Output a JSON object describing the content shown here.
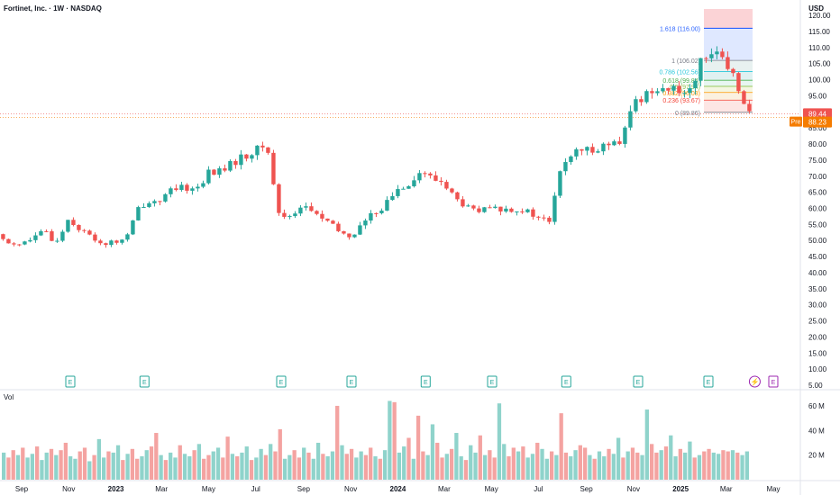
{
  "header": {
    "symbol": "Fortinet, Inc.",
    "interval": "1W",
    "exchange": "NASDAQ",
    "title": "Fortinet, Inc. · 1W · NASDAQ",
    "currency": "USD"
  },
  "colors": {
    "up": "#26a69a",
    "down": "#ef5350",
    "up_volume": "#8fd3cb",
    "down_volume": "#f4a3a1",
    "price_badge": "#ef5350",
    "pre_badge": "#f57c00",
    "earnings_green": "#26a69a",
    "earnings_purple": "#9c27b0",
    "fib_top_line": "#2962ff"
  },
  "chart_data": {
    "type": "candlestick",
    "title": "Fortinet, Inc. · 1W · NASDAQ",
    "y_axis": {
      "range": [
        5,
        122
      ],
      "ticks": [
        "5.00",
        "10.00",
        "15.00",
        "20.00",
        "25.00",
        "30.00",
        "35.00",
        "40.00",
        "45.00",
        "50.00",
        "55.00",
        "60.00",
        "65.00",
        "70.00",
        "75.00",
        "80.00",
        "85.00",
        "90.00",
        "95.00",
        "100.00",
        "105.00",
        "110.00",
        "115.00",
        "120.00"
      ]
    },
    "x_axis": {
      "labels": [
        "Sep",
        "Nov",
        "2023",
        "Mar",
        "May",
        "Jul",
        "Sep",
        "Nov",
        "2024",
        "Mar",
        "May",
        "Jul",
        "Sep",
        "Nov",
        "2025",
        "Mar",
        "May"
      ],
      "bold_labels": [
        "2023",
        "2024",
        "2025"
      ]
    },
    "price_labels": {
      "last": "89.44",
      "pre_tag": "Pre",
      "pre": "88.23"
    },
    "close_path": [
      [
        "2022-08-01",
        51.5
      ],
      [
        "2022-08-15",
        49.5
      ],
      [
        "2022-09-01",
        49
      ],
      [
        "2022-09-15",
        50.5
      ],
      [
        "2022-10-01",
        53
      ],
      [
        "2022-10-15",
        49
      ],
      [
        "2022-11-01",
        57
      ],
      [
        "2022-11-15",
        53.5
      ],
      [
        "2022-12-01",
        51
      ],
      [
        "2022-12-15",
        49
      ],
      [
        "2023-01-01",
        49.5
      ],
      [
        "2023-01-15",
        51
      ],
      [
        "2023-02-01",
        61
      ],
      [
        "2023-02-15",
        62
      ],
      [
        "2023-03-01",
        63
      ],
      [
        "2023-03-15",
        65.5
      ],
      [
        "2023-04-01",
        66.5
      ],
      [
        "2023-04-15",
        66
      ],
      [
        "2023-05-01",
        71
      ],
      [
        "2023-05-15",
        71.5
      ],
      [
        "2023-06-01",
        74
      ],
      [
        "2023-06-15",
        76
      ],
      [
        "2023-07-01",
        78
      ],
      [
        "2023-07-15",
        80
      ],
      [
        "2023-08-01",
        57
      ],
      [
        "2023-08-15",
        58
      ],
      [
        "2023-09-01",
        61
      ],
      [
        "2023-09-15",
        58.5
      ],
      [
        "2023-10-01",
        56
      ],
      [
        "2023-10-15",
        53
      ],
      [
        "2023-11-01",
        51
      ],
      [
        "2023-11-15",
        55
      ],
      [
        "2023-12-01",
        58.5
      ],
      [
        "2023-12-15",
        61
      ],
      [
        "2024-01-01",
        66
      ],
      [
        "2024-01-15",
        68
      ],
      [
        "2024-02-01",
        71.5
      ],
      [
        "2024-02-15",
        69
      ],
      [
        "2024-03-01",
        68
      ],
      [
        "2024-03-15",
        63
      ],
      [
        "2024-04-01",
        60
      ],
      [
        "2024-04-15",
        59
      ],
      [
        "2024-05-01",
        60
      ],
      [
        "2024-05-15",
        59.5
      ],
      [
        "2024-06-01",
        60
      ],
      [
        "2024-06-15",
        59
      ],
      [
        "2024-07-01",
        57
      ],
      [
        "2024-07-15",
        56
      ],
      [
        "2024-08-01",
        74
      ],
      [
        "2024-08-15",
        77
      ],
      [
        "2024-09-01",
        78
      ],
      [
        "2024-09-15",
        79
      ],
      [
        "2024-10-01",
        80
      ],
      [
        "2024-10-15",
        79.5
      ],
      [
        "2024-11-01",
        93
      ],
      [
        "2024-11-15",
        95
      ],
      [
        "2024-12-01",
        98
      ],
      [
        "2024-12-15",
        97
      ],
      [
        "2025-01-01",
        96
      ],
      [
        "2025-01-15",
        98
      ],
      [
        "2025-02-01",
        108
      ],
      [
        "2025-02-15",
        110
      ],
      [
        "2025-03-01",
        103
      ],
      [
        "2025-03-15",
        99
      ],
      [
        "2025-04-01",
        89.44
      ]
    ],
    "fib_levels": [
      {
        "label": "1.618 (116.00)",
        "value": 116.0
      },
      {
        "label": "1 (106.02)",
        "value": 106.02
      },
      {
        "label": "0.786 (102.56)",
        "value": 102.56
      },
      {
        "label": "0.618 (99.84)",
        "value": 99.84
      },
      {
        "label": "0.5 (97.94)",
        "value": 97.94
      },
      {
        "label": "0.382 (96.03)",
        "value": 96.03
      },
      {
        "label": "0.236 (93.67)",
        "value": 93.67
      },
      {
        "label": "0 (89.86)",
        "value": 89.86
      }
    ],
    "fib_upper_zone": 122,
    "earnings_markers": [
      {
        "label": "E",
        "date": "2022-11-03",
        "style": "green"
      },
      {
        "label": "E",
        "date": "2023-02-07",
        "style": "green"
      },
      {
        "label": "E",
        "date": "2023-08-03",
        "style": "green"
      },
      {
        "label": "E",
        "date": "2023-11-02",
        "style": "green"
      },
      {
        "label": "E",
        "date": "2024-02-06",
        "style": "green"
      },
      {
        "label": "E",
        "date": "2024-05-02",
        "style": "green"
      },
      {
        "label": "E",
        "date": "2024-08-06",
        "style": "green"
      },
      {
        "label": "E",
        "date": "2024-11-07",
        "style": "green"
      },
      {
        "label": "E",
        "date": "2025-02-06",
        "style": "green"
      },
      {
        "label": "⚡",
        "date": "2025-04-07",
        "style": "purple-circle"
      },
      {
        "label": "E",
        "date": "2025-05-01",
        "style": "purple"
      }
    ],
    "volume": {
      "label": "Vol",
      "ticks": [
        "20 M",
        "40 M",
        "60 M"
      ],
      "range_millions": [
        0,
        68
      ],
      "values_millions": [
        22,
        18,
        24,
        20,
        26,
        18,
        21,
        27,
        16,
        22,
        25,
        20,
        24,
        30,
        19,
        17,
        23,
        26,
        15,
        20,
        33,
        18,
        23,
        22,
        28,
        16,
        21,
        25,
        17,
        19,
        24,
        27,
        38,
        20,
        16,
        22,
        18,
        28,
        21,
        19,
        24,
        29,
        17,
        20,
        23,
        26,
        18,
        35,
        21,
        19,
        22,
        27,
        16,
        18,
        25,
        20,
        29,
        23,
        41,
        17,
        20,
        24,
        18,
        26,
        22,
        17,
        30,
        21,
        19,
        23,
        60,
        28,
        21,
        25,
        18,
        23,
        20,
        26,
        19,
        17,
        24,
        64,
        63,
        22,
        27,
        34,
        17,
        52,
        23,
        20,
        45,
        30,
        18,
        21,
        25,
        38,
        19,
        16,
        28,
        22,
        36,
        20,
        24,
        18,
        62,
        29,
        19,
        26,
        23,
        27,
        18,
        21,
        30,
        25,
        17,
        23,
        20,
        54,
        22,
        19,
        24,
        28,
        26,
        20,
        17,
        23,
        19,
        25,
        21,
        34,
        18,
        23,
        26,
        22,
        20,
        57,
        29,
        22,
        24,
        27,
        36,
        19,
        25,
        22,
        31,
        18,
        20,
        23,
        25,
        22,
        21,
        24,
        23,
        24,
        22,
        20,
        23
      ]
    }
  }
}
